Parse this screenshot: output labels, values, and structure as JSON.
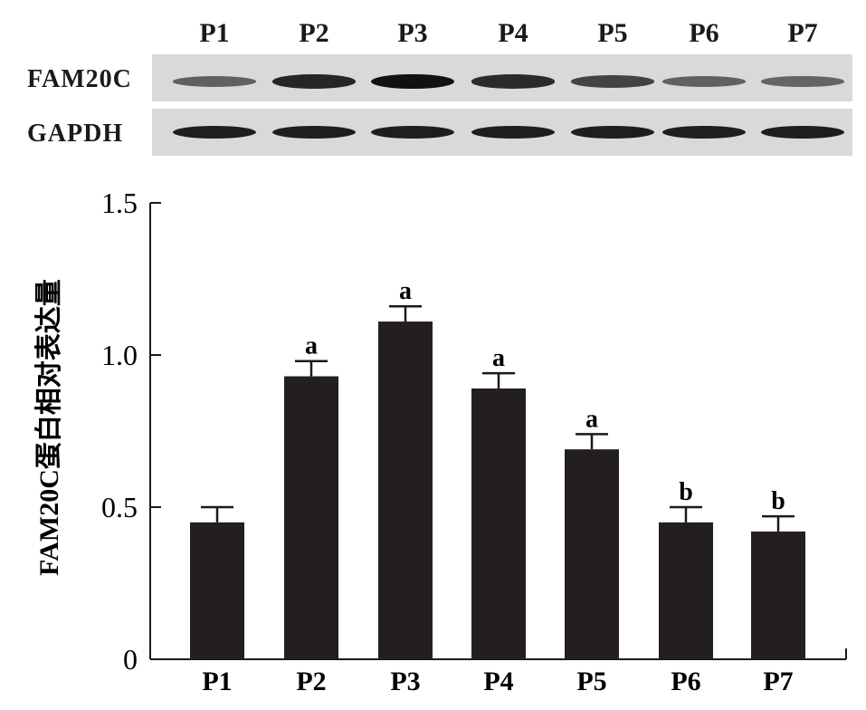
{
  "blot": {
    "lanes": [
      "P1",
      "P2",
      "P3",
      "P4",
      "P5",
      "P6",
      "P7"
    ],
    "rows": [
      {
        "label": "FAM20C",
        "intensity": [
          0.45,
          0.93,
          1.11,
          0.89,
          0.69,
          0.45,
          0.42
        ]
      },
      {
        "label": "GAPDH",
        "intensity": [
          1,
          1,
          1,
          1,
          1,
          1,
          1
        ]
      }
    ]
  },
  "chart_data": {
    "type": "bar",
    "categories": [
      "P1",
      "P2",
      "P3",
      "P4",
      "P5",
      "P6",
      "P7"
    ],
    "values": [
      0.45,
      0.93,
      1.11,
      0.89,
      0.69,
      0.45,
      0.42
    ],
    "errors": [
      0.05,
      0.05,
      0.05,
      0.05,
      0.05,
      0.05,
      0.05
    ],
    "significance": [
      "",
      "a",
      "a",
      "a",
      "a",
      "b",
      "b"
    ],
    "ylabel": "FAM20C蛋白相对表达量",
    "xlabel": "",
    "yticks": [
      "0",
      "0.5",
      "1.0",
      "1.5"
    ],
    "ylim": [
      0,
      1.5
    ],
    "bar_color": "#231f20"
  }
}
